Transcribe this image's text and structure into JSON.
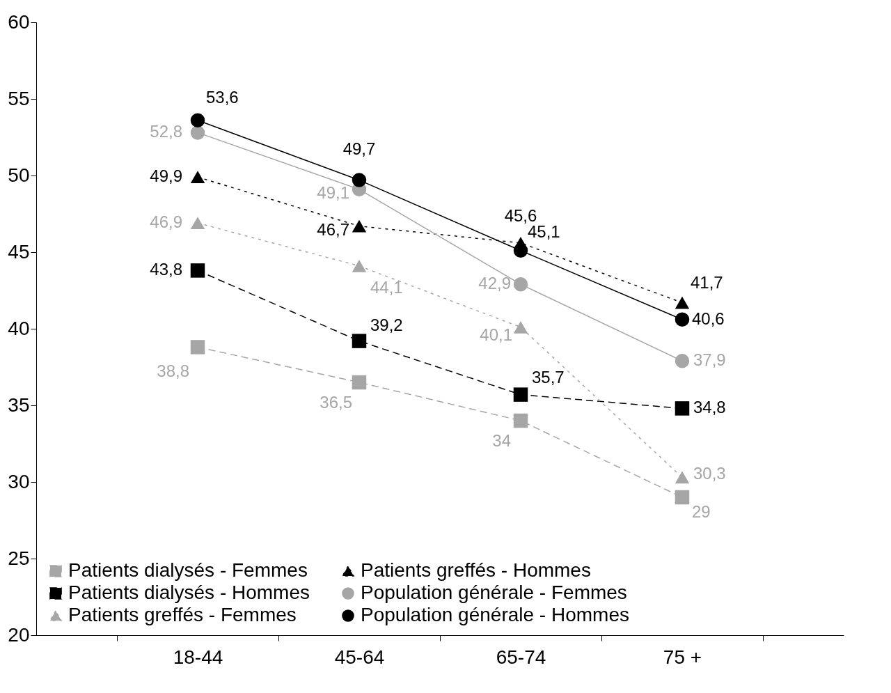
{
  "chart_data": {
    "type": "line",
    "categories": [
      "18-44",
      "45-64",
      "65-74",
      "75 +"
    ],
    "ylim": [
      20,
      60
    ],
    "yticks": [
      20,
      25,
      30,
      35,
      40,
      45,
      50,
      55,
      60
    ],
    "grid": false,
    "legend": "bottom left",
    "series": [
      {
        "name": "Patients dialysés - Femmes",
        "color": "#a6a6a6",
        "marker": "square",
        "line_style": "dashed",
        "values": [
          38.8,
          36.5,
          34,
          29
        ],
        "value_labels": [
          "38,8",
          "36,5",
          "34",
          "29"
        ]
      },
      {
        "name": "Patients dialysés - Hommes",
        "color": "#000000",
        "marker": "square",
        "line_style": "dashed",
        "values": [
          43.8,
          39.2,
          35.7,
          34.8
        ],
        "value_labels": [
          "43,8",
          "39,2",
          "35,7",
          "34,8"
        ]
      },
      {
        "name": "Patients greffés - Femmes",
        "color": "#a6a6a6",
        "marker": "triangle",
        "line_style": "dotted",
        "values": [
          46.9,
          44.1,
          40.1,
          30.3
        ],
        "value_labels": [
          "46,9",
          "44,1",
          "40,1",
          "30,3"
        ]
      },
      {
        "name": "Patients greffés - Hommes",
        "color": "#000000",
        "marker": "triangle",
        "line_style": "dotted",
        "values": [
          49.9,
          46.7,
          45.6,
          41.7
        ],
        "value_labels": [
          "49,9",
          "46,7",
          "45,6",
          "41,7"
        ]
      },
      {
        "name": "Population générale - Femmes",
        "color": "#a6a6a6",
        "marker": "circle",
        "line_style": "solid",
        "values": [
          52.8,
          49.1,
          42.9,
          37.9
        ],
        "value_labels": [
          "52,8",
          "49,1",
          "42,9",
          "37,9"
        ]
      },
      {
        "name": "Population générale - Hommes",
        "color": "#000000",
        "marker": "circle",
        "line_style": "solid",
        "values": [
          53.6,
          49.7,
          45.1,
          40.6
        ],
        "value_labels": [
          "53,6",
          "49,7",
          "45,1",
          "40,6"
        ]
      }
    ]
  }
}
